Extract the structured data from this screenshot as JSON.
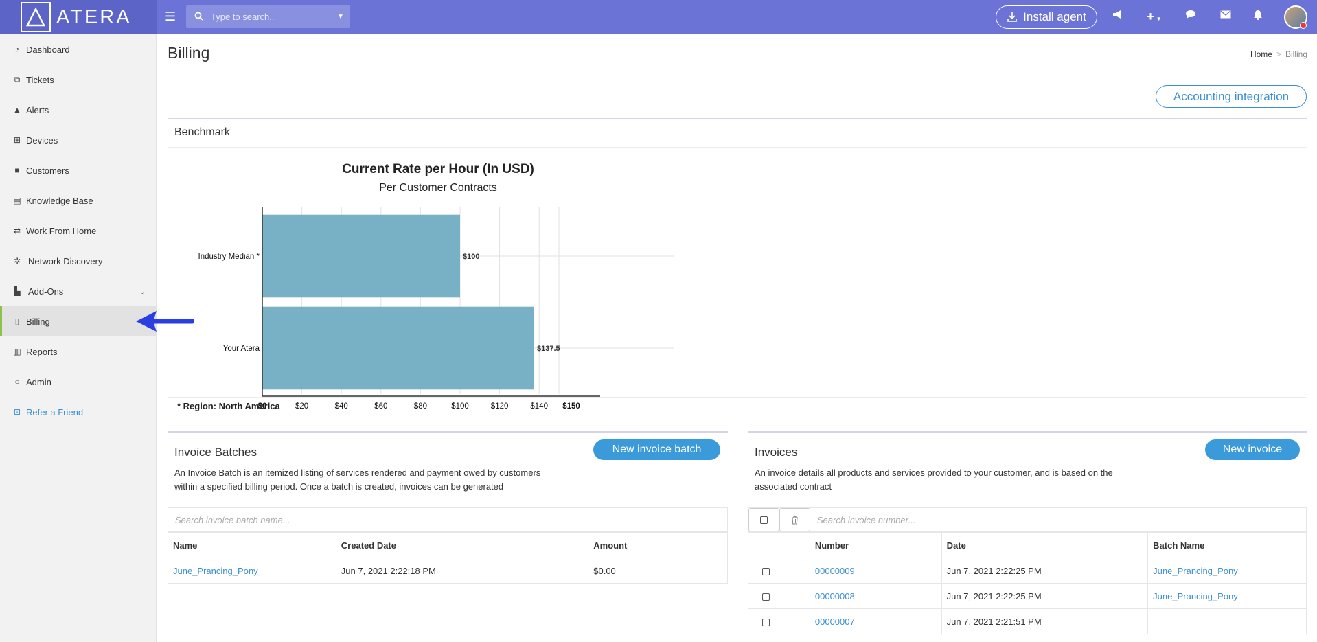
{
  "app": {
    "logo_text": "ATERA"
  },
  "topbar": {
    "search_placeholder": "Type to search..",
    "install_label": "Install agent"
  },
  "sidebar": {
    "items": [
      {
        "label": "Dashboard",
        "icon": "dashboard-icon"
      },
      {
        "label": "Tickets",
        "icon": "tags-icon"
      },
      {
        "label": "Alerts",
        "icon": "warning-icon"
      },
      {
        "label": "Devices",
        "icon": "sitemap-icon"
      },
      {
        "label": "Customers",
        "icon": "briefcase-icon"
      },
      {
        "label": "Knowledge Base",
        "icon": "book-icon"
      },
      {
        "label": "Work From Home",
        "icon": "remote-icon"
      },
      {
        "label": "Network Discovery",
        "icon": "network-icon"
      },
      {
        "label": "Add-Ons",
        "icon": "puzzle-icon"
      },
      {
        "label": "Billing",
        "icon": "invoice-icon"
      },
      {
        "label": "Reports",
        "icon": "bar-chart-icon"
      },
      {
        "label": "Admin",
        "icon": "circle-notch-icon"
      },
      {
        "label": "Refer a Friend",
        "icon": "gift-icon"
      }
    ],
    "active": "Billing"
  },
  "page": {
    "title": "Billing",
    "breadcrumb": {
      "home": "Home",
      "sep": ">",
      "current": "Billing"
    },
    "accounting_button": "Accounting integration",
    "benchmark_title": "Benchmark",
    "region_note": "* Region: North America"
  },
  "chart_data": {
    "type": "bar",
    "orientation": "horizontal",
    "title": "Current Rate per Hour (In USD)",
    "subtitle": "Per Customer Contracts",
    "categories": [
      "Industry Median *",
      "Your Atera"
    ],
    "values": [
      100,
      137.5
    ],
    "data_labels": [
      "$100",
      "$137.5"
    ],
    "xlim": [
      0,
      150
    ],
    "x_ticks": [
      "$0",
      "$20",
      "$40",
      "$60",
      "$80",
      "$100",
      "$120",
      "$140",
      "$150"
    ],
    "x_tick_values": [
      0,
      20,
      40,
      60,
      80,
      100,
      120,
      140,
      150
    ],
    "bar_color": "#78b1c5",
    "grid": true
  },
  "invoice_batches": {
    "title": "Invoice Batches",
    "description": "An Invoice Batch is an itemized listing of services rendered and payment owed by customers within a specified billing period. Once a batch is created, invoices can be generated",
    "button": "New invoice batch",
    "search_placeholder": "Search invoice batch name...",
    "columns": [
      "Name",
      "Created Date",
      "Amount"
    ],
    "rows": [
      {
        "name": "June_Prancing_Pony",
        "created": "Jun 7, 2021 2:22:18 PM",
        "amount": "$0.00"
      }
    ]
  },
  "invoices": {
    "title": "Invoices",
    "description": "An invoice details all products and services provided to your customer, and is based on the associated contract",
    "button": "New invoice",
    "search_placeholder": "Search invoice number...",
    "columns": [
      "Number",
      "Date",
      "Batch Name"
    ],
    "rows": [
      {
        "number": "00000009",
        "date": "Jun 7, 2021 2:22:25 PM",
        "batch": "June_Prancing_Pony"
      },
      {
        "number": "00000008",
        "date": "Jun 7, 2021 2:22:25 PM",
        "batch": "June_Prancing_Pony"
      },
      {
        "number": "00000007",
        "date": "Jun 7, 2021 2:21:51 PM",
        "batch": ""
      }
    ]
  },
  "colors": {
    "topbar": "#6b73d6",
    "accent": "#3b9ad9",
    "active_marker": "#8bc34a",
    "annotation_arrow": "#2a3fe0"
  }
}
